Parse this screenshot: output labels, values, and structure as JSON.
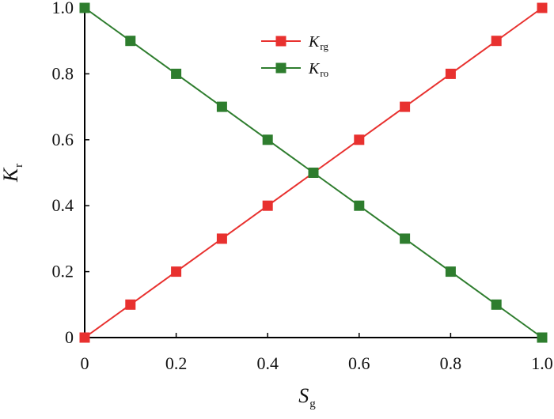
{
  "chart_data": {
    "type": "line",
    "x": [
      0,
      0.1,
      0.2,
      0.3,
      0.4,
      0.5,
      0.6,
      0.7,
      0.8,
      0.9,
      1.0
    ],
    "series": [
      {
        "name": "Krg",
        "name_main": "K",
        "name_sub": "rg",
        "color": "#e8312f",
        "marker": "square",
        "values": [
          0,
          0.1,
          0.2,
          0.3,
          0.4,
          0.5,
          0.6,
          0.7,
          0.8,
          0.9,
          1.0
        ]
      },
      {
        "name": "Kro",
        "name_main": "K",
        "name_sub": "ro",
        "color": "#2e7d2e",
        "marker": "square",
        "values": [
          1.0,
          0.9,
          0.8,
          0.7,
          0.6,
          0.5,
          0.4,
          0.3,
          0.2,
          0.1,
          0
        ]
      }
    ],
    "xlabel": {
      "main": "S",
      "sub": "g"
    },
    "ylabel": {
      "main": "K",
      "sub": "r"
    },
    "xlim": [
      0,
      1.0
    ],
    "ylim": [
      0,
      1.0
    ],
    "xticks": [
      0,
      0.2,
      0.4,
      0.6,
      0.8,
      1.0
    ],
    "xtick_labels": [
      "0",
      "0.2",
      "0.4",
      "0.6",
      "0.8",
      "1.0"
    ],
    "yticks": [
      0,
      0.2,
      0.4,
      0.6,
      0.8,
      1.0
    ],
    "ytick_labels": [
      "0",
      "0.2",
      "0.4",
      "0.6",
      "0.8",
      "1.0"
    ],
    "grid": false,
    "legend_position": "top-center"
  }
}
